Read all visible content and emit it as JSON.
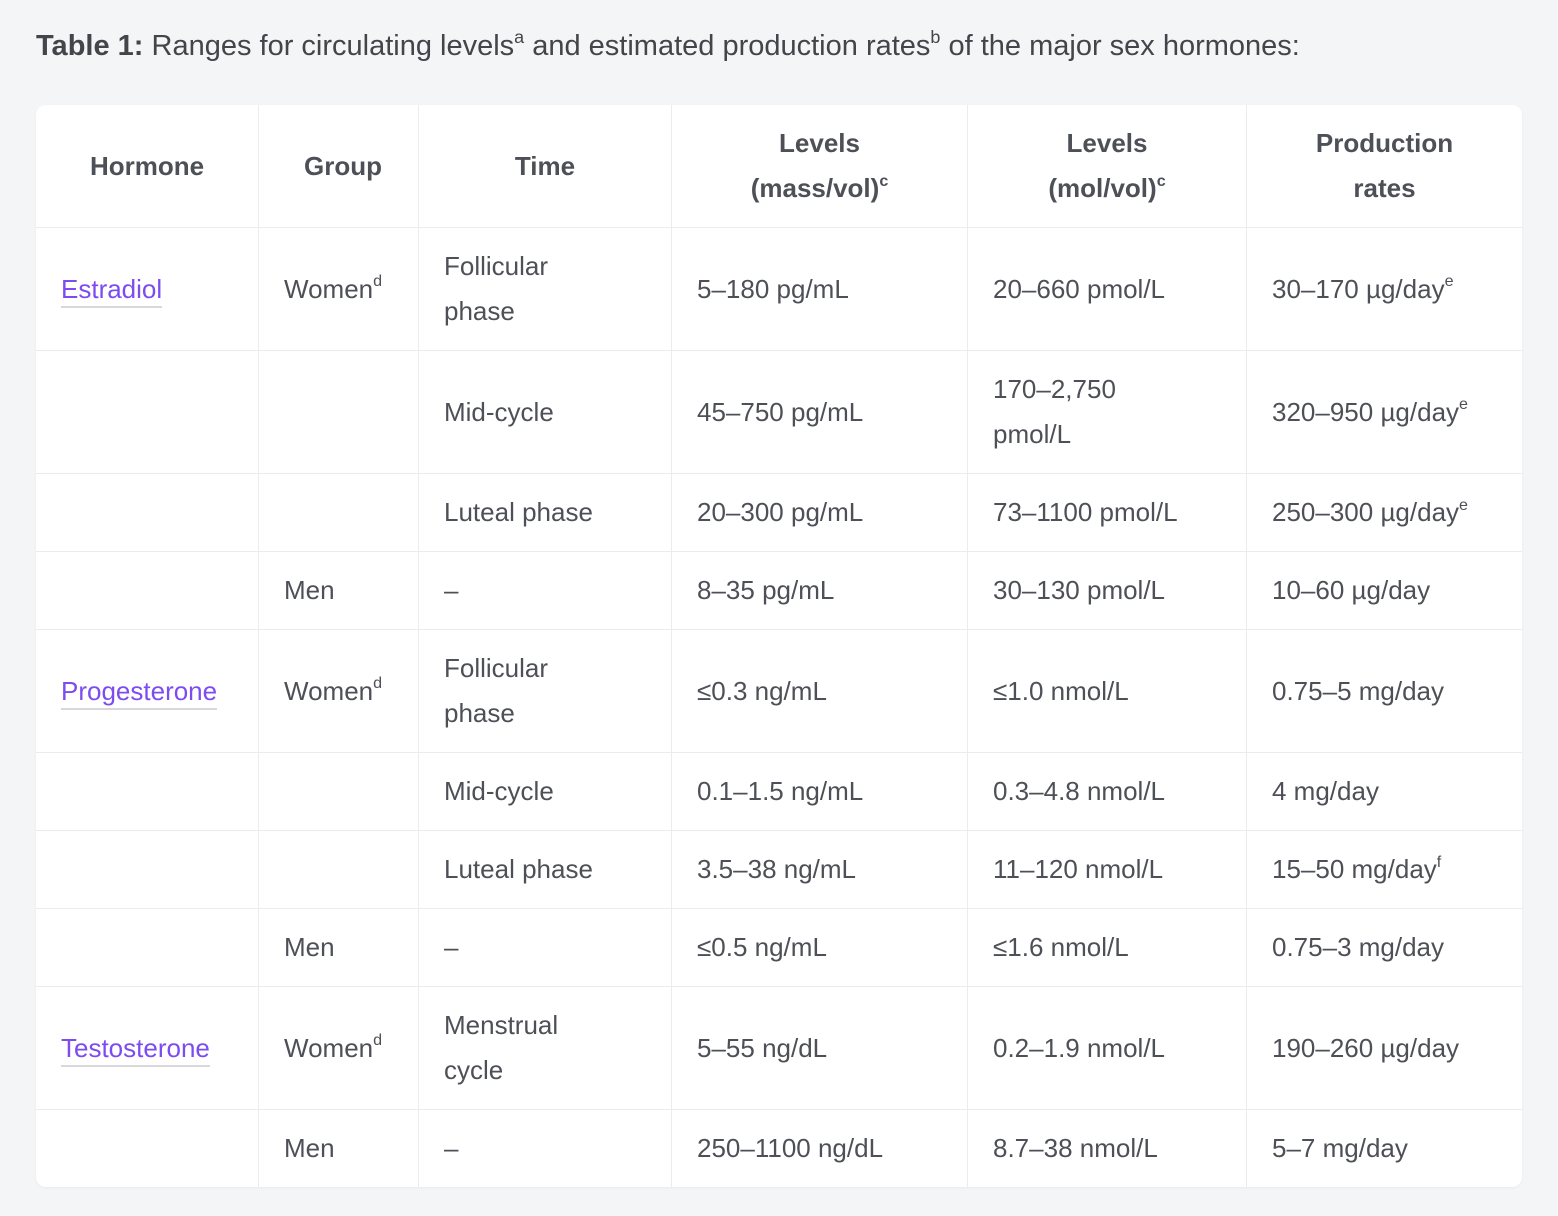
{
  "colors": {
    "page-bg": "#f4f5f6",
    "card-bg": "#ffffff",
    "border": "#ebecee",
    "text": "#4e5057",
    "link": "#7c4cf0",
    "link-underline": "#d8d8dc"
  },
  "caption": {
    "label": "Table 1:",
    "part1": " Ranges for circulating levels",
    "sup1": "a",
    "part2": " and estimated production rates",
    "sup2": "b",
    "part3": " of the major sex hormones:"
  },
  "table": {
    "headers": [
      {
        "text": "Hormone",
        "sup": ""
      },
      {
        "text": "Group",
        "sup": ""
      },
      {
        "text": "Time",
        "sup": ""
      },
      {
        "text": "Levels (mass/vol)",
        "sup": "c"
      },
      {
        "text": "Levels (mol/vol)",
        "sup": "c"
      },
      {
        "text": "Production rates",
        "sup": ""
      }
    ],
    "rows": [
      {
        "hormone": "Estradiol",
        "group": "Women",
        "group_sup": "d",
        "time": "Follicular phase",
        "mass": "5–180 pg/mL",
        "mol": "20–660 pmol/L",
        "production": "30–170 µg/day",
        "production_sup": "e"
      },
      {
        "hormone": "",
        "group": "",
        "group_sup": "",
        "time": "Mid-cycle",
        "mass": "45–750 pg/mL",
        "mol": "170–2,750 pmol/L",
        "production": "320–950 µg/day",
        "production_sup": "e"
      },
      {
        "hormone": "",
        "group": "",
        "group_sup": "",
        "time": "Luteal phase",
        "mass": "20–300 pg/mL",
        "mol": "73–1100 pmol/L",
        "production": "250–300 µg/day",
        "production_sup": "e"
      },
      {
        "hormone": "",
        "group": "Men",
        "group_sup": "",
        "time": "–",
        "mass": "8–35 pg/mL",
        "mol": "30–130 pmol/L",
        "production": "10–60 µg/day",
        "production_sup": ""
      },
      {
        "hormone": "Progesterone",
        "group": "Women",
        "group_sup": "d",
        "time": "Follicular phase",
        "mass": "≤0.3 ng/mL",
        "mol": "≤1.0 nmol/L",
        "production": "0.75–5 mg/day",
        "production_sup": ""
      },
      {
        "hormone": "",
        "group": "",
        "group_sup": "",
        "time": "Mid-cycle",
        "mass": "0.1–1.5 ng/mL",
        "mol": "0.3–4.8 nmol/L",
        "production": "4 mg/day",
        "production_sup": ""
      },
      {
        "hormone": "",
        "group": "",
        "group_sup": "",
        "time": "Luteal phase",
        "mass": "3.5–38 ng/mL",
        "mol": "11–120 nmol/L",
        "production": "15–50 mg/day",
        "production_sup": "f"
      },
      {
        "hormone": "",
        "group": "Men",
        "group_sup": "",
        "time": "–",
        "mass": "≤0.5 ng/mL",
        "mol": "≤1.6 nmol/L",
        "production": "0.75–3 mg/day",
        "production_sup": ""
      },
      {
        "hormone": "Testosterone",
        "group": "Women",
        "group_sup": "d",
        "time": "Menstrual cycle",
        "mass": "5–55 ng/dL",
        "mol": "0.2–1.9 nmol/L",
        "production": "190–260 µg/day",
        "production_sup": ""
      },
      {
        "hormone": "",
        "group": "Men",
        "group_sup": "",
        "time": "–",
        "mass": "250–1100 ng/dL",
        "mol": "8.7–38 nmol/L",
        "production": "5–7 mg/day",
        "production_sup": ""
      }
    ]
  }
}
